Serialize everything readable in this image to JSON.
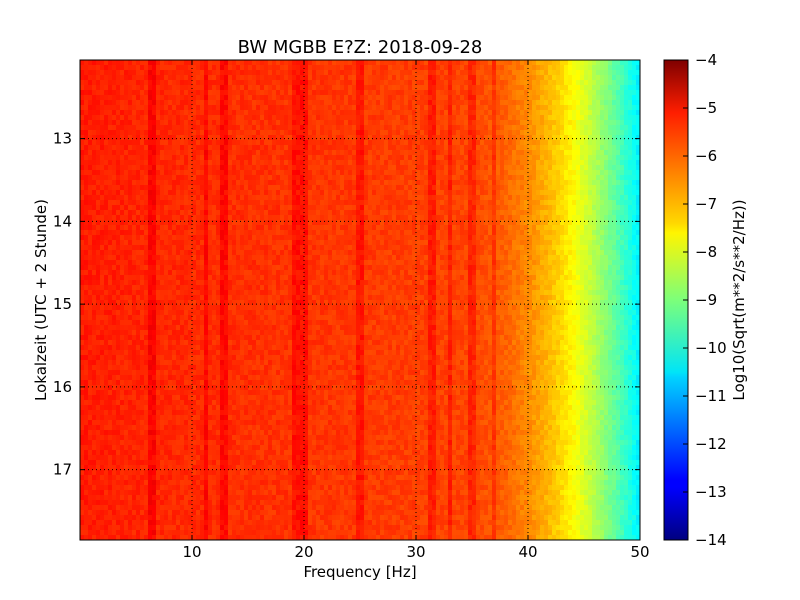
{
  "chart_data": {
    "type": "heatmap",
    "title": "BW MGBB E?Z: 2018-09-28",
    "xlabel": "Frequency [Hz]",
    "ylabel": "Lokalzeit (UTC + 2 Stunde)",
    "xlim": [
      0,
      50
    ],
    "ylim": [
      12.05,
      17.85
    ],
    "y_inverted": true,
    "grid": true,
    "x_ticks": [
      10,
      20,
      30,
      40,
      50
    ],
    "y_ticks": [
      13,
      14,
      15,
      16,
      17
    ],
    "colormap": "jet",
    "colorbar": {
      "label": "Log10(Sqrt(m**2/s**2/Hz))",
      "range": [
        -14,
        -4
      ],
      "ticks": [
        -4,
        -5,
        -6,
        -7,
        -8,
        -9,
        -10,
        -11,
        -12,
        -13,
        -14
      ]
    },
    "profile": {
      "frequency_hz": [
        0,
        5,
        10,
        15,
        20,
        25,
        30,
        34,
        36,
        38,
        40,
        42,
        44,
        46,
        48,
        50
      ],
      "log10_amplitude": [
        -5.5,
        -5.6,
        -5.65,
        -5.7,
        -5.75,
        -5.8,
        -5.85,
        -5.9,
        -6.0,
        -6.2,
        -6.6,
        -7.1,
        -7.7,
        -8.5,
        -9.4,
        -10.4
      ]
    },
    "lines_hz": [
      6.5,
      11.2,
      12.9,
      19.3,
      19.9,
      25,
      31.5,
      33,
      35,
      37
    ]
  }
}
